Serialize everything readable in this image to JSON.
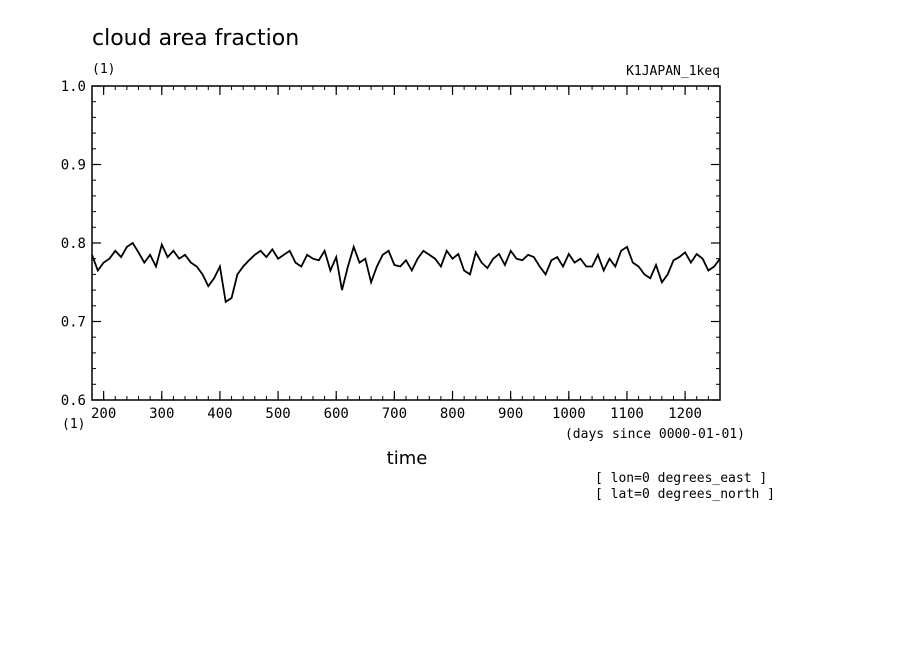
{
  "chart_data": {
    "type": "line",
    "title": "cloud area fraction",
    "units": "(1)",
    "dataset": "K1JAPAN_1keq",
    "xlabel": "time",
    "x_units": "(days since 0000-01-01)",
    "y_units_corner": "(1)",
    "xlim": [
      180,
      1260
    ],
    "ylim": [
      0.6,
      1.0
    ],
    "x_ticks": [
      200,
      300,
      400,
      500,
      600,
      700,
      800,
      900,
      1000,
      1100,
      1200
    ],
    "y_ticks": [
      0.6,
      0.7,
      0.8,
      0.9,
      1.0
    ],
    "y_tick_labels": [
      "0.6",
      "0.7",
      "0.8",
      "0.9",
      "1.0"
    ],
    "grid": false,
    "line_color": "#000000",
    "annotations": [
      "[ lon=0 degrees_east ]",
      "[ lat=0 degrees_north ]"
    ],
    "series": [
      {
        "x": [
          180,
          190,
          200,
          210,
          220,
          230,
          240,
          250,
          260,
          270,
          280,
          290,
          300,
          310,
          320,
          330,
          340,
          350,
          360,
          370,
          380,
          390,
          400,
          410,
          420,
          430,
          440,
          450,
          460,
          470,
          480,
          490,
          500,
          510,
          520,
          530,
          540,
          550,
          560,
          570,
          580,
          590,
          600,
          610,
          620,
          630,
          640,
          650,
          660,
          670,
          680,
          690,
          700,
          710,
          720,
          730,
          740,
          750,
          760,
          770,
          780,
          790,
          800,
          810,
          820,
          830,
          840,
          850,
          860,
          870,
          880,
          890,
          900,
          910,
          920,
          930,
          940,
          950,
          960,
          970,
          980,
          990,
          1000,
          1010,
          1020,
          1030,
          1040,
          1050,
          1060,
          1070,
          1080,
          1090,
          1100,
          1110,
          1120,
          1130,
          1140,
          1150,
          1160,
          1170,
          1180,
          1190,
          1200,
          1210,
          1220,
          1230,
          1240,
          1250,
          1260
        ],
        "values": [
          0.785,
          0.765,
          0.775,
          0.78,
          0.79,
          0.782,
          0.795,
          0.8,
          0.788,
          0.775,
          0.785,
          0.77,
          0.798,
          0.782,
          0.79,
          0.78,
          0.785,
          0.775,
          0.77,
          0.76,
          0.745,
          0.755,
          0.77,
          0.725,
          0.73,
          0.76,
          0.77,
          0.778,
          0.785,
          0.79,
          0.782,
          0.792,
          0.78,
          0.785,
          0.79,
          0.775,
          0.77,
          0.785,
          0.78,
          0.778,
          0.79,
          0.765,
          0.782,
          0.74,
          0.77,
          0.795,
          0.775,
          0.78,
          0.75,
          0.77,
          0.785,
          0.79,
          0.772,
          0.77,
          0.778,
          0.765,
          0.78,
          0.79,
          0.785,
          0.78,
          0.77,
          0.79,
          0.78,
          0.786,
          0.765,
          0.76,
          0.788,
          0.775,
          0.768,
          0.78,
          0.786,
          0.772,
          0.79,
          0.78,
          0.778,
          0.785,
          0.782,
          0.77,
          0.76,
          0.778,
          0.782,
          0.77,
          0.786,
          0.775,
          0.78,
          0.77,
          0.77,
          0.785,
          0.765,
          0.78,
          0.77,
          0.79,
          0.795,
          0.775,
          0.77,
          0.76,
          0.755,
          0.772,
          0.75,
          0.76,
          0.778,
          0.782,
          0.788,
          0.775,
          0.786,
          0.78,
          0.765,
          0.77,
          0.78
        ]
      }
    ]
  }
}
